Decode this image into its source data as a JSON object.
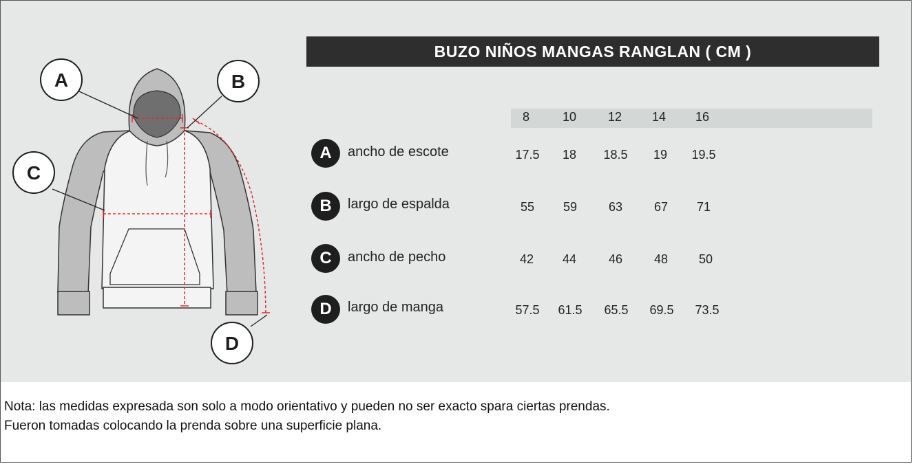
{
  "title": "BUZO NIÑOS MANGAS RANGLAN  ( CM )",
  "sizes": [
    "8",
    "10",
    "12",
    "14",
    "16"
  ],
  "rows": [
    {
      "key": "A",
      "label": "ancho de escote",
      "values": [
        "17.5",
        "18",
        "18.5",
        "19",
        "19.5"
      ]
    },
    {
      "key": "B",
      "label": "largo de espalda",
      "values": [
        "55",
        "59",
        "63",
        "67",
        "71"
      ]
    },
    {
      "key": "C",
      "label": "ancho de pecho",
      "values": [
        "42",
        "44",
        "46",
        "48",
        "50"
      ]
    },
    {
      "key": "D",
      "label": "largo de manga",
      "values": [
        "57.5",
        "61.5",
        "65.5",
        "69.5",
        "73.5"
      ]
    }
  ],
  "diagram_callouts": {
    "a": "A",
    "b": "B",
    "c": "C",
    "d": "D"
  },
  "notes": {
    "line1": "Nota: las medidas expresada son solo a modo orientativo y pueden no ser exacto spara ciertas prendas.",
    "line2": "Fueron tomadas colocando la prenda sobre una superficie plana."
  },
  "colors": {
    "panel": "#e6e8e7",
    "title_bar": "#2d2e2d",
    "badge": "#1e1e1e",
    "measure_line": "#e32b2b",
    "sleeve": "#bdbdbd",
    "body": "#f4f4f4"
  }
}
